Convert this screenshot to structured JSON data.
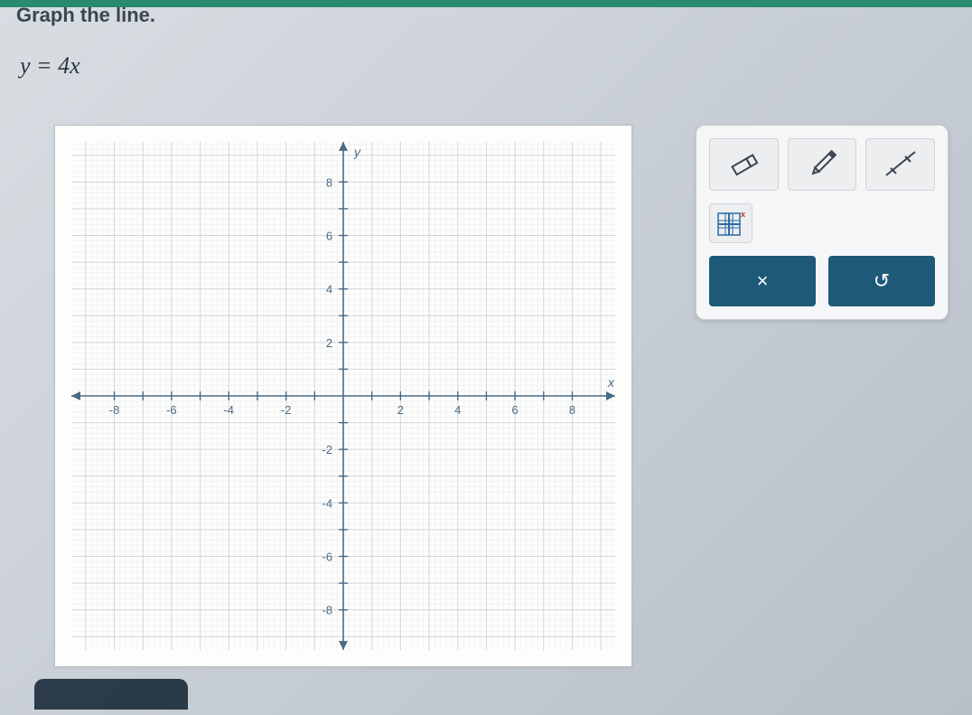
{
  "instruction": "Graph the line.",
  "equation": "y = 4x",
  "graph": {
    "type": "cartesian-grid",
    "xlim": [
      -9.5,
      9.5
    ],
    "ylim": [
      -9.5,
      9.5
    ],
    "xtick_step": 1,
    "ytick_step": 1,
    "xtick_labels": [
      "-8",
      "-6",
      "-4",
      "-2",
      "2",
      "4",
      "6",
      "8"
    ],
    "xtick_label_positions": [
      -8,
      -6,
      -4,
      -2,
      2,
      4,
      6,
      8
    ],
    "ytick_labels": [
      "8",
      "6",
      "4",
      "2",
      "-2",
      "-4",
      "-6",
      "-8"
    ],
    "ytick_label_positions": [
      8,
      6,
      4,
      2,
      -2,
      -4,
      -6,
      -8
    ],
    "x_axis_label": "x",
    "y_axis_label": "y",
    "background_color": "#fdfdfc",
    "major_grid_color": "#d0d6dc",
    "minor_grid_color": "#e6eaee",
    "axis_color": "#4a6a85",
    "tick_label_color": "#4a6a85",
    "tick_label_fontsize": 13,
    "axis_label_fontsize": 14,
    "minor_per_major": 5
  },
  "tool_panel": {
    "background_color": "#f5f6f7",
    "border_color": "#c8ccd0",
    "tool_button_bg": "#eceef0",
    "tool_button_border": "#d0d4d8",
    "tools": {
      "eraser": "eraser-icon",
      "pencil": "pencil-icon",
      "line_points": "line-points-icon",
      "grid_settings": "grid-settings-icon"
    },
    "actions": {
      "clear": {
        "symbol": "×",
        "bg": "#1e5a78"
      },
      "undo": {
        "symbol": "↺",
        "bg": "#1e5a78"
      }
    }
  }
}
